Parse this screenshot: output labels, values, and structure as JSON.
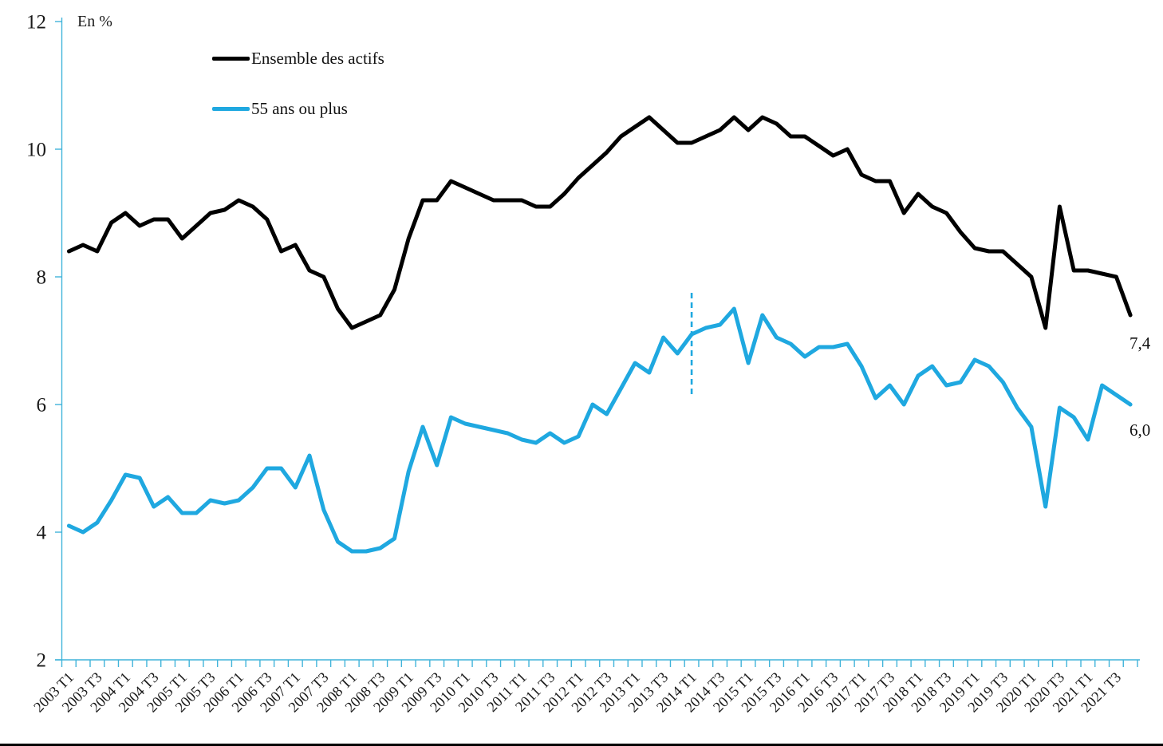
{
  "figure": {
    "unit_label": "En %",
    "colors": {
      "ensemble": "#000000",
      "seniors": "#1FA8E0",
      "axis": "#41B4DA",
      "text": "#1A1A1A"
    },
    "end_labels": {
      "ensemble": "7,4",
      "seniors": "6,0"
    }
  },
  "legend": {
    "items": [
      {
        "label": "Ensemble des actifs",
        "color_key": "ensemble"
      },
      {
        "label": "55 ans ou plus",
        "color_key": "seniors"
      }
    ]
  },
  "chart_data": {
    "type": "line",
    "ylabel": "En %",
    "ylim": [
      2,
      12
    ],
    "yticks": [
      2,
      4,
      6,
      8,
      10,
      12
    ],
    "x_label_step": 2,
    "legend_position": "top-left-inside",
    "grid": false,
    "categories": [
      "2003 T1",
      "2003 T2",
      "2003 T3",
      "2003 T4",
      "2004 T1",
      "2004 T2",
      "2004 T3",
      "2004 T4",
      "2005 T1",
      "2005 T2",
      "2005 T3",
      "2005 T4",
      "2006 T1",
      "2006 T2",
      "2006 T3",
      "2006 T4",
      "2007 T1",
      "2007 T2",
      "2007 T3",
      "2007 T4",
      "2008 T1",
      "2008 T2",
      "2008 T3",
      "2008 T4",
      "2009 T1",
      "2009 T2",
      "2009 T3",
      "2009 T4",
      "2010 T1",
      "2010 T2",
      "2010 T3",
      "2010 T4",
      "2011 T1",
      "2011 T2",
      "2011 T3",
      "2011 T4",
      "2012 T1",
      "2012 T2",
      "2012 T3",
      "2012 T4",
      "2013 T1",
      "2013 T2",
      "2013 T3",
      "2013 T4",
      "2014 T1",
      "2014 T2",
      "2014 T3",
      "2014 T4",
      "2015 T1",
      "2015 T2",
      "2015 T3",
      "2015 T4",
      "2016 T1",
      "2016 T2",
      "2016 T3",
      "2016 T4",
      "2017 T1",
      "2017 T2",
      "2017 T3",
      "2017 T4",
      "2018 T1",
      "2018 T2",
      "2018 T3",
      "2018 T4",
      "2019 T1",
      "2019 T2",
      "2019 T3",
      "2019 T4",
      "2020 T1",
      "2020 T2",
      "2020 T3",
      "2020 T4",
      "2021 T1",
      "2021 T2",
      "2021 T3",
      "2021 T4"
    ],
    "series": [
      {
        "name": "Ensemble des actifs",
        "color_key": "ensemble",
        "values": [
          8.4,
          8.5,
          8.4,
          8.85,
          9.0,
          8.8,
          8.9,
          8.9,
          8.6,
          8.8,
          9.0,
          9.05,
          9.2,
          9.1,
          8.9,
          8.4,
          8.5,
          8.1,
          8.0,
          7.5,
          7.2,
          7.3,
          7.4,
          7.8,
          8.6,
          9.2,
          9.2,
          9.5,
          9.4,
          9.3,
          9.2,
          9.2,
          9.2,
          9.1,
          9.1,
          9.3,
          9.55,
          9.75,
          9.95,
          10.2,
          10.35,
          10.5,
          10.3,
          10.1,
          10.1,
          10.2,
          10.3,
          10.5,
          10.3,
          10.5,
          10.4,
          10.2,
          10.2,
          10.05,
          9.9,
          10.0,
          9.6,
          9.5,
          9.5,
          9.0,
          9.3,
          9.1,
          9.0,
          8.7,
          8.45,
          8.4,
          8.4,
          8.2,
          8.0,
          7.2,
          9.1,
          8.1,
          8.1,
          8.05,
          8.0,
          7.4
        ]
      },
      {
        "name": "55 ans ou plus",
        "color_key": "seniors",
        "values": [
          4.1,
          4.0,
          4.15,
          4.5,
          4.9,
          4.85,
          4.4,
          4.55,
          4.3,
          4.3,
          4.5,
          4.45,
          4.5,
          4.7,
          5.0,
          5.0,
          4.7,
          5.2,
          4.35,
          3.85,
          3.7,
          3.7,
          3.75,
          3.9,
          4.95,
          5.65,
          5.05,
          5.8,
          5.7,
          5.65,
          5.6,
          5.55,
          5.45,
          5.4,
          5.55,
          5.4,
          5.5,
          6.0,
          5.85,
          6.25,
          6.65,
          6.5,
          7.05,
          6.8,
          7.1,
          7.2,
          7.25,
          7.5,
          6.65,
          7.4,
          7.05,
          6.95,
          6.75,
          6.9,
          6.9,
          6.95,
          6.6,
          6.1,
          6.3,
          6.0,
          6.45,
          6.6,
          6.3,
          6.35,
          6.7,
          6.6,
          6.35,
          5.95,
          5.65,
          4.4,
          5.95,
          5.8,
          5.45,
          6.3,
          6.15,
          6.0
        ]
      }
    ],
    "annotations": {
      "series_break": {
        "x_category": "2014 T1",
        "y_from": 6.1,
        "y_to": 7.75,
        "style": "dashed",
        "color_key": "seniors"
      }
    },
    "end_value_labels": [
      {
        "series": "Ensemble des actifs",
        "text": "7,4"
      },
      {
        "series": "55 ans ou plus",
        "text": "6,0"
      }
    ]
  }
}
